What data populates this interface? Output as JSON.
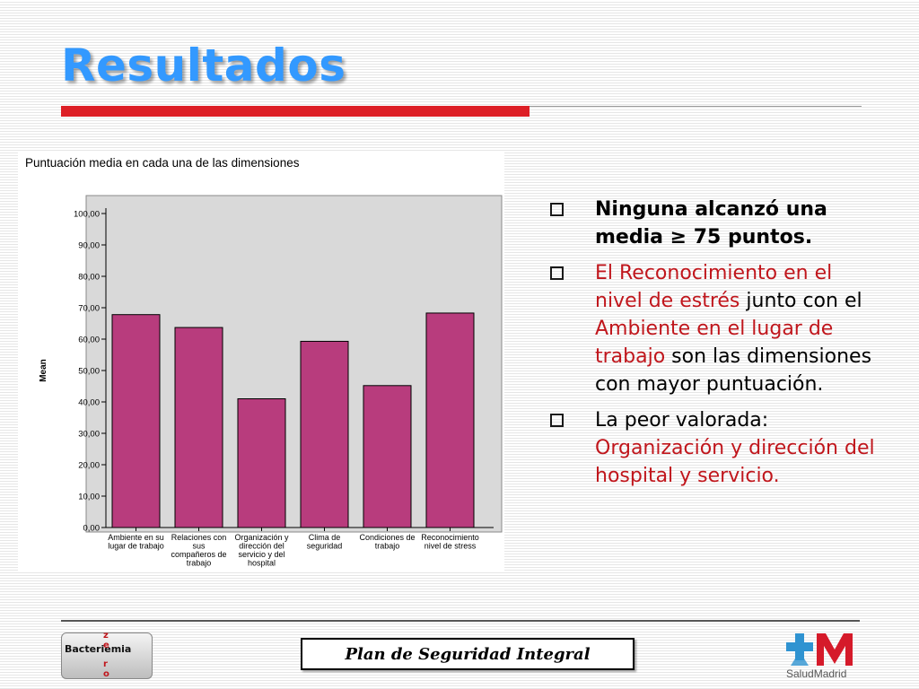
{
  "slide": {
    "title": "Resultados",
    "bullets": [
      {
        "lines": [
          [
            "Ninguna alcanzó una media ≥ 75 puntos",
            false
          ],
          [
            ".",
            false
          ]
        ]
      },
      {
        "lines": [
          [
            "El Reconocimiento en el nivel de estrés",
            true
          ],
          [
            " junto con el ",
            false
          ],
          [
            "Ambiente en el lugar de trabajo",
            true
          ],
          [
            " son las dimensiones con mayor puntuación.",
            false
          ]
        ]
      },
      {
        "lines": [
          [
            "La peor valorada: ",
            false
          ],
          [
            "Organización y dirección del hospital y servicio.",
            true
          ]
        ]
      }
    ]
  },
  "footer": {
    "left_logo_text": "Bacteriemia",
    "left_logo_vertical": "zero",
    "center_label": "Plan de Seguridad Integral",
    "right_logo_label": "SaludMadrid"
  },
  "colors": {
    "title": "#3399ff",
    "accent_red": "#dd1f26",
    "bar_fill": "#b83c7d",
    "plot_bg": "#d9d9d9"
  },
  "chart_data": {
    "type": "bar",
    "title": "Puntuación media en cada una de las dimensiones",
    "ylabel": "Mean",
    "xlabel": "",
    "ylim": [
      0,
      100
    ],
    "yticks": [
      "0,00",
      "10,00",
      "20,00",
      "30,00",
      "40,00",
      "50,00",
      "60,00",
      "70,00",
      "80,00",
      "90,00",
      "100,00"
    ],
    "categories": [
      [
        "Ambiente  en su",
        "lugar de trabajo"
      ],
      [
        "Relaciones con",
        "sus",
        "compañeros de",
        "trabajo"
      ],
      [
        "Organización y",
        "dirección del",
        "servicio y del",
        "hospital"
      ],
      [
        "Clima de",
        "seguridad"
      ],
      [
        "Condiciones de",
        "trabajo"
      ],
      [
        "Reconocimiento",
        "nivel de stress"
      ]
    ],
    "values": [
      67.8,
      63.7,
      41.0,
      59.3,
      45.2,
      68.3
    ],
    "grid": false,
    "legend": "none"
  }
}
